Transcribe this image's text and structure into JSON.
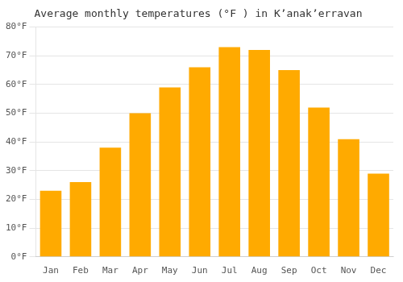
{
  "chart_data": {
    "type": "bar",
    "title": "Average monthly temperatures (°F ) in Kʼanakʼerravan",
    "categories": [
      "Jan",
      "Feb",
      "Mar",
      "Apr",
      "May",
      "Jun",
      "Jul",
      "Aug",
      "Sep",
      "Oct",
      "Nov",
      "Dec"
    ],
    "values": [
      23,
      26,
      38,
      50,
      59,
      66,
      73,
      72,
      65,
      52,
      41,
      29
    ],
    "color": "#FFAA00",
    "ylim": [
      0,
      80
    ],
    "yticks": [
      {
        "value": 0,
        "label": "0°F"
      },
      {
        "value": 10,
        "label": "10°F"
      },
      {
        "value": 20,
        "label": "20°F"
      },
      {
        "value": 30,
        "label": "30°F"
      },
      {
        "value": 40,
        "label": "40°F"
      },
      {
        "value": 50,
        "label": "50°F"
      },
      {
        "value": 60,
        "label": "60°F"
      },
      {
        "value": 70,
        "label": "70°F"
      },
      {
        "value": 80,
        "label": "80°F"
      }
    ],
    "grid": true
  }
}
